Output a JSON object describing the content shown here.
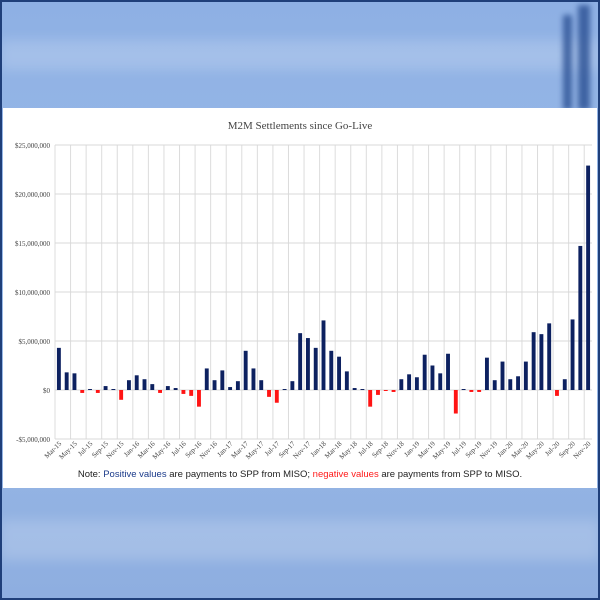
{
  "chart_data": {
    "type": "bar",
    "title": "M2M Settlements since Go-Live",
    "xlabel": "",
    "ylabel": "",
    "ylim": [
      -5000000,
      25000000
    ],
    "yticks": [
      25000000,
      20000000,
      15000000,
      10000000,
      5000000,
      0,
      -5000000
    ],
    "ytick_labels": [
      "$25,000,000",
      "$20,000,000",
      "$15,000,000",
      "$10,000,000",
      "$5,000,000",
      "$0",
      "-$5,000,000"
    ],
    "grid": true,
    "categories": [
      "Mar-15",
      "Apr-15",
      "May-15",
      "Jun-15",
      "Jul-15",
      "Aug-15",
      "Sep-15",
      "Oct-15",
      "Nov-15",
      "Dec-15",
      "Jan-16",
      "Feb-16",
      "Mar-16",
      "Apr-16",
      "May-16",
      "Jun-16",
      "Jul-16",
      "Aug-16",
      "Sep-16",
      "Oct-16",
      "Nov-16",
      "Dec-16",
      "Jan-17",
      "Feb-17",
      "Mar-17",
      "Apr-17",
      "May-17",
      "Jun-17",
      "Jul-17",
      "Aug-17",
      "Sep-17",
      "Oct-17",
      "Nov-17",
      "Dec-17",
      "Jan-18",
      "Feb-18",
      "Mar-18",
      "Apr-18",
      "May-18",
      "Jun-18",
      "Jul-18",
      "Aug-18",
      "Sep-18",
      "Oct-18",
      "Nov-18",
      "Dec-18",
      "Jan-19",
      "Feb-19",
      "Mar-19",
      "Apr-19",
      "May-19",
      "Jun-19",
      "Jul-19",
      "Aug-19",
      "Sep-19",
      "Oct-19",
      "Nov-19",
      "Dec-19",
      "Jan-20",
      "Feb-20",
      "Mar-20",
      "Apr-20",
      "May-20",
      "Jun-20",
      "Jul-20",
      "Aug-20",
      "Sep-20",
      "Oct-20",
      "Nov-20"
    ],
    "values": [
      4300000,
      1800000,
      1700000,
      -300000,
      100000,
      -300000,
      400000,
      100000,
      -1000000,
      1000000,
      1500000,
      1100000,
      600000,
      -300000,
      400000,
      200000,
      -400000,
      -600000,
      -1700000,
      2200000,
      1000000,
      2000000,
      300000,
      900000,
      4000000,
      2200000,
      1000000,
      -700000,
      -1300000,
      100000,
      900000,
      5800000,
      5300000,
      4300000,
      7100000,
      4000000,
      3400000,
      1900000,
      200000,
      100000,
      -1700000,
      -500000,
      -100000,
      -200000,
      1100000,
      1600000,
      1300000,
      3600000,
      2500000,
      1700000,
      3700000,
      -2400000,
      100000,
      -200000,
      -200000,
      3300000,
      1000000,
      2900000,
      1100000,
      1400000,
      2900000,
      5900000,
      5700000,
      6800000,
      -600000,
      1100000,
      7200000,
      14700000,
      22900000
    ],
    "colors": {
      "positive": "#0d2160",
      "negative": "#ff1414"
    }
  },
  "note": {
    "prefix": "Note:  ",
    "positive_label": "Positive values",
    "positive_text": " are payments to SPP from MISO; ",
    "negative_label": "negative values",
    "negative_text": " are payments from SPP to MISO."
  }
}
